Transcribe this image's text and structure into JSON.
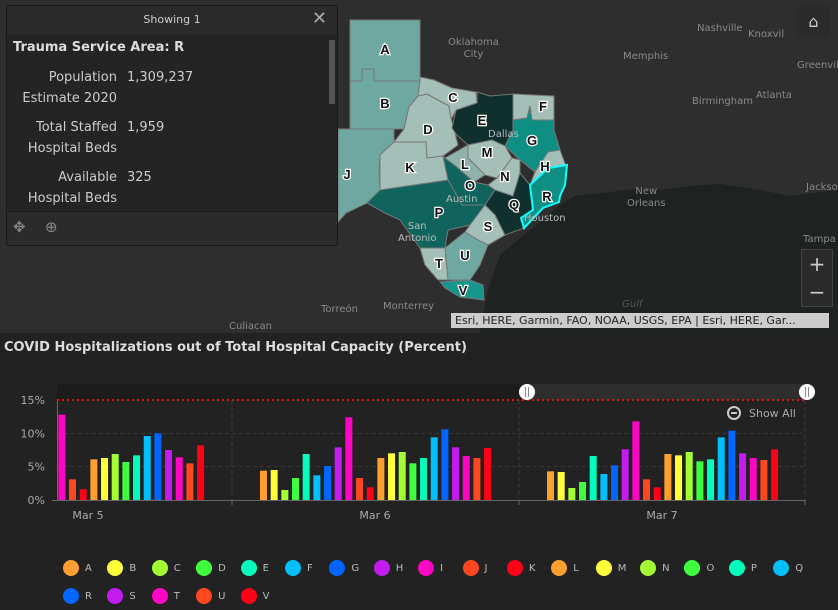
{
  "popup": {
    "header": "Showing 1",
    "title": "Trauma Service Area: R",
    "fields": [
      {
        "label1": "Population",
        "label2": "Estimate 2020",
        "value": "1,309,237"
      },
      {
        "label1": "Total Staffed",
        "label2": "Hospital Beds",
        "value": "1,959"
      },
      {
        "label1": "Available",
        "label2": "Hospital Beds",
        "value": "325"
      }
    ]
  },
  "map": {
    "cities": [
      "Oklahoma",
      "City",
      "Nashville",
      "Knoxvil",
      "Memphis",
      "Greenvill",
      "Birmingham",
      "Atlanta",
      "Dallas",
      "Austin",
      "San",
      "Antonio",
      "Houston",
      "New",
      "Orleans",
      "Jackso",
      "Tampa",
      "Torreón",
      "Monterrey",
      "Culiacan",
      "Gulf"
    ],
    "regions": [
      "A",
      "B",
      "C",
      "D",
      "E",
      "F",
      "G",
      "H",
      "J",
      "K",
      "L",
      "M",
      "N",
      "O",
      "P",
      "Q",
      "R",
      "S",
      "T",
      "U",
      "V"
    ],
    "selected": "R",
    "attribution": "Esri, HERE, Garmin, FAO, NOAA, USGS, EPA | Esri, HERE, Gar...",
    "zoom_in": "+",
    "zoom_out": "−"
  },
  "chart": {
    "title": "COVID Hospitalizations out of Total Hospital Capacity (Percent)",
    "show_all": "Show All"
  },
  "chart_data": {
    "type": "bar",
    "title": "COVID Hospitalizations out of Total Hospital Capacity (Percent)",
    "categories": [
      "Mar 5",
      "Mar 6",
      "Mar 7"
    ],
    "yticks": [
      "0%",
      "5%",
      "10%",
      "15%"
    ],
    "ylim": [
      0,
      15
    ],
    "threshold": 15,
    "series": [
      {
        "name": "A",
        "color": "#ff9f2e",
        "values": [
          null,
          4.4,
          4.3
        ]
      },
      {
        "name": "B",
        "color": "#ffff3c",
        "values": [
          null,
          4.5,
          4.2
        ]
      },
      {
        "name": "C",
        "color": "#a3ff33",
        "values": [
          null,
          1.5,
          1.8
        ]
      },
      {
        "name": "D",
        "color": "#3dff3d",
        "values": [
          null,
          3.3,
          2.7
        ]
      },
      {
        "name": "E",
        "color": "#00ffba",
        "values": [
          null,
          6.9,
          6.6
        ]
      },
      {
        "name": "F",
        "color": "#00bfff",
        "values": [
          null,
          3.7,
          3.9
        ]
      },
      {
        "name": "G",
        "color": "#0066ff",
        "values": [
          null,
          5.1,
          5.2
        ]
      },
      {
        "name": "H",
        "color": "#c21cf0",
        "values": [
          null,
          7.9,
          7.6
        ]
      },
      {
        "name": "I",
        "color": "#ff05c4",
        "values": [
          12.8,
          12.4,
          11.8
        ]
      },
      {
        "name": "J",
        "color": "#ff4720",
        "values": [
          3.1,
          3.3,
          3.1
        ]
      },
      {
        "name": "K",
        "color": "#ff0017",
        "values": [
          1.6,
          1.9,
          1.9
        ]
      },
      {
        "name": "L",
        "color": "#ff9f2e",
        "values": [
          6.1,
          6.3,
          6.9
        ]
      },
      {
        "name": "M",
        "color": "#ffff3c",
        "values": [
          6.3,
          7.0,
          6.7
        ]
      },
      {
        "name": "N",
        "color": "#a3ff33",
        "values": [
          6.9,
          7.2,
          7.2
        ]
      },
      {
        "name": "O",
        "color": "#3dff3d",
        "values": [
          5.7,
          5.5,
          5.8
        ]
      },
      {
        "name": "P",
        "color": "#00ffba",
        "values": [
          6.7,
          6.3,
          6.1
        ]
      },
      {
        "name": "Q",
        "color": "#00bfff",
        "values": [
          9.6,
          9.4,
          9.4
        ]
      },
      {
        "name": "R",
        "color": "#0066ff",
        "values": [
          10.0,
          10.6,
          10.4
        ]
      },
      {
        "name": "S",
        "color": "#c21cf0",
        "values": [
          7.5,
          7.9,
          7.0
        ]
      },
      {
        "name": "T",
        "color": "#ff05c4",
        "values": [
          6.4,
          6.6,
          6.3
        ]
      },
      {
        "name": "U",
        "color": "#ff4720",
        "values": [
          5.5,
          6.3,
          6.0
        ]
      },
      {
        "name": "V",
        "color": "#ff0017",
        "values": [
          8.2,
          7.8,
          7.6
        ]
      }
    ]
  }
}
